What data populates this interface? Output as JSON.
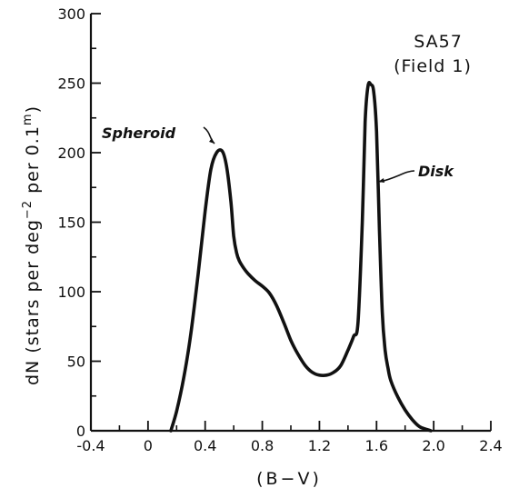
{
  "chart_data": {
    "type": "line",
    "xlabel": "(B−V)",
    "ylabel": "dN (stars per deg",
    "ylabel_sup": "−2",
    "ylabel_mid": " per 0.1",
    "ylabel_sup2": "m",
    "ylabel_end": ")",
    "xlim": [
      -0.4,
      2.4
    ],
    "ylim": [
      0,
      300
    ],
    "x_ticks": [
      -0.4,
      0,
      0.4,
      0.8,
      1.2,
      1.6,
      2.0,
      2.4
    ],
    "x_tick_labels": [
      "-0.4",
      "0",
      "0.4",
      "0.8",
      "1.2",
      "1.6",
      "2.0",
      "2.4"
    ],
    "y_ticks": [
      0,
      50,
      100,
      150,
      200,
      250,
      300
    ],
    "y_tick_labels": [
      "0",
      "50",
      "100",
      "150",
      "200",
      "250",
      "300"
    ],
    "grid": false,
    "annotations": [
      {
        "text": "SA57",
        "style": "plain"
      },
      {
        "text": "(Field 1)",
        "style": "plain"
      },
      {
        "text": "Spheroid",
        "style": "italic",
        "points_to": [
          0.52,
          200
        ]
      },
      {
        "text": "Disk",
        "style": "italic",
        "points_to": [
          1.58,
          178
        ]
      }
    ],
    "series": [
      {
        "x": [
          0.16,
          0.2,
          0.25,
          0.3,
          0.35,
          0.4,
          0.44,
          0.48,
          0.52,
          0.55,
          0.58,
          0.6,
          0.62,
          0.64,
          0.67,
          0.7,
          0.75,
          0.8,
          0.85,
          0.9,
          0.95,
          1.0,
          1.05,
          1.1,
          1.15,
          1.2,
          1.25,
          1.3,
          1.35,
          1.4,
          1.44,
          1.47,
          1.5,
          1.52,
          1.54,
          1.56,
          1.58,
          1.6,
          1.62,
          1.64,
          1.66,
          1.68,
          1.7,
          1.75,
          1.8,
          1.85,
          1.9,
          1.95,
          1.98
        ],
        "y": [
          0,
          14,
          38,
          70,
          112,
          158,
          188,
          200,
          201,
          190,
          165,
          140,
          128,
          122,
          117,
          113,
          108,
          104,
          99,
          90,
          78,
          65,
          55,
          47,
          42,
          40,
          40,
          42,
          47,
          58,
          68,
          78,
          150,
          222,
          248,
          249,
          244,
          215,
          145,
          85,
          58,
          45,
          36,
          24,
          15,
          8,
          3,
          1,
          0
        ]
      }
    ]
  }
}
